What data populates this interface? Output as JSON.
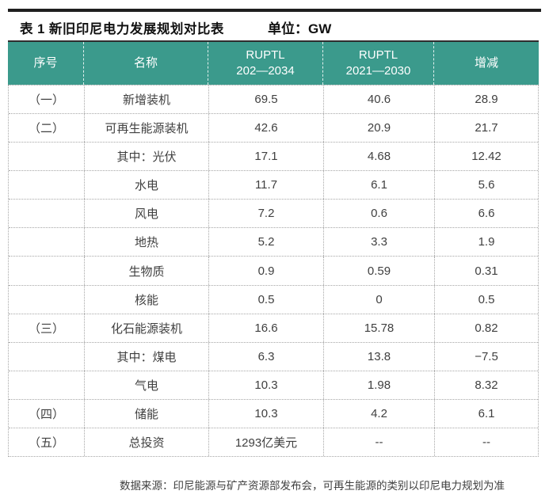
{
  "header": {
    "title": "表 1 新旧印尼电力发展规划对比表",
    "unit": "单位：GW"
  },
  "table": {
    "columns": [
      "序号",
      "名称",
      "RUPTL\n202—2034",
      "RUPTL\n2021—2030",
      "增减"
    ],
    "rows": [
      [
        "（一）",
        "新增装机",
        "69.5",
        "40.6",
        "28.9"
      ],
      [
        "（二）",
        "可再生能源装机",
        "42.6",
        "20.9",
        "21.7"
      ],
      [
        "",
        "其中：光伏",
        "17.1",
        "4.68",
        "12.42"
      ],
      [
        "",
        "水电",
        "11.7",
        "6.1",
        "5.6"
      ],
      [
        "",
        "风电",
        "7.2",
        "0.6",
        "6.6"
      ],
      [
        "",
        "地热",
        "5.2",
        "3.3",
        "1.9"
      ],
      [
        "",
        "生物质",
        "0.9",
        "0.59",
        "0.31"
      ],
      [
        "",
        "核能",
        "0.5",
        "0",
        "0.5"
      ],
      [
        "（三）",
        "化石能源装机",
        "16.6",
        "15.78",
        "0.82"
      ],
      [
        "",
        "其中：煤电",
        "6.3",
        "13.8",
        "−7.5"
      ],
      [
        "",
        "气电",
        "10.3",
        "1.98",
        "8.32"
      ],
      [
        "（四）",
        "储能",
        "10.3",
        "4.2",
        "6.1"
      ],
      [
        "（五）",
        "总投资",
        "1293亿美元",
        "--",
        "--"
      ]
    ]
  },
  "footer": {
    "note": "数据来源：印尼能源与矿产资源部发布会，可再生能源的类别以印尼电力规划为准"
  },
  "colors": {
    "header_bg": "#3b9a8c",
    "top_rule": "#1f1f1f",
    "grid_dotted": "#a6a6a6",
    "body_text": "#404040"
  },
  "chart_data": {
    "type": "table",
    "title": "表 1 新旧印尼电力发展规划对比表",
    "unit": "GW",
    "columns": [
      "序号",
      "名称",
      "RUPTL 202—2034",
      "RUPTL 2021—2030",
      "增减"
    ],
    "rows": [
      [
        "（一）",
        "新增装机",
        "69.5",
        "40.6",
        "28.9"
      ],
      [
        "（二）",
        "可再生能源装机",
        "42.6",
        "20.9",
        "21.7"
      ],
      [
        "",
        "其中：光伏",
        "17.1",
        "4.68",
        "12.42"
      ],
      [
        "",
        "水电",
        "11.7",
        "6.1",
        "5.6"
      ],
      [
        "",
        "风电",
        "7.2",
        "0.6",
        "6.6"
      ],
      [
        "",
        "地热",
        "5.2",
        "3.3",
        "1.9"
      ],
      [
        "",
        "生物质",
        "0.9",
        "0.59",
        "0.31"
      ],
      [
        "",
        "核能",
        "0.5",
        "0",
        "0.5"
      ],
      [
        "（三）",
        "化石能源装机",
        "16.6",
        "15.78",
        "0.82"
      ],
      [
        "",
        "其中：煤电",
        "6.3",
        "13.8",
        "−7.5"
      ],
      [
        "",
        "气电",
        "10.3",
        "1.98",
        "8.32"
      ],
      [
        "（四）",
        "储能",
        "10.3",
        "4.2",
        "6.1"
      ],
      [
        "（五）",
        "总投资",
        "1293亿美元",
        "--",
        "--"
      ]
    ]
  }
}
